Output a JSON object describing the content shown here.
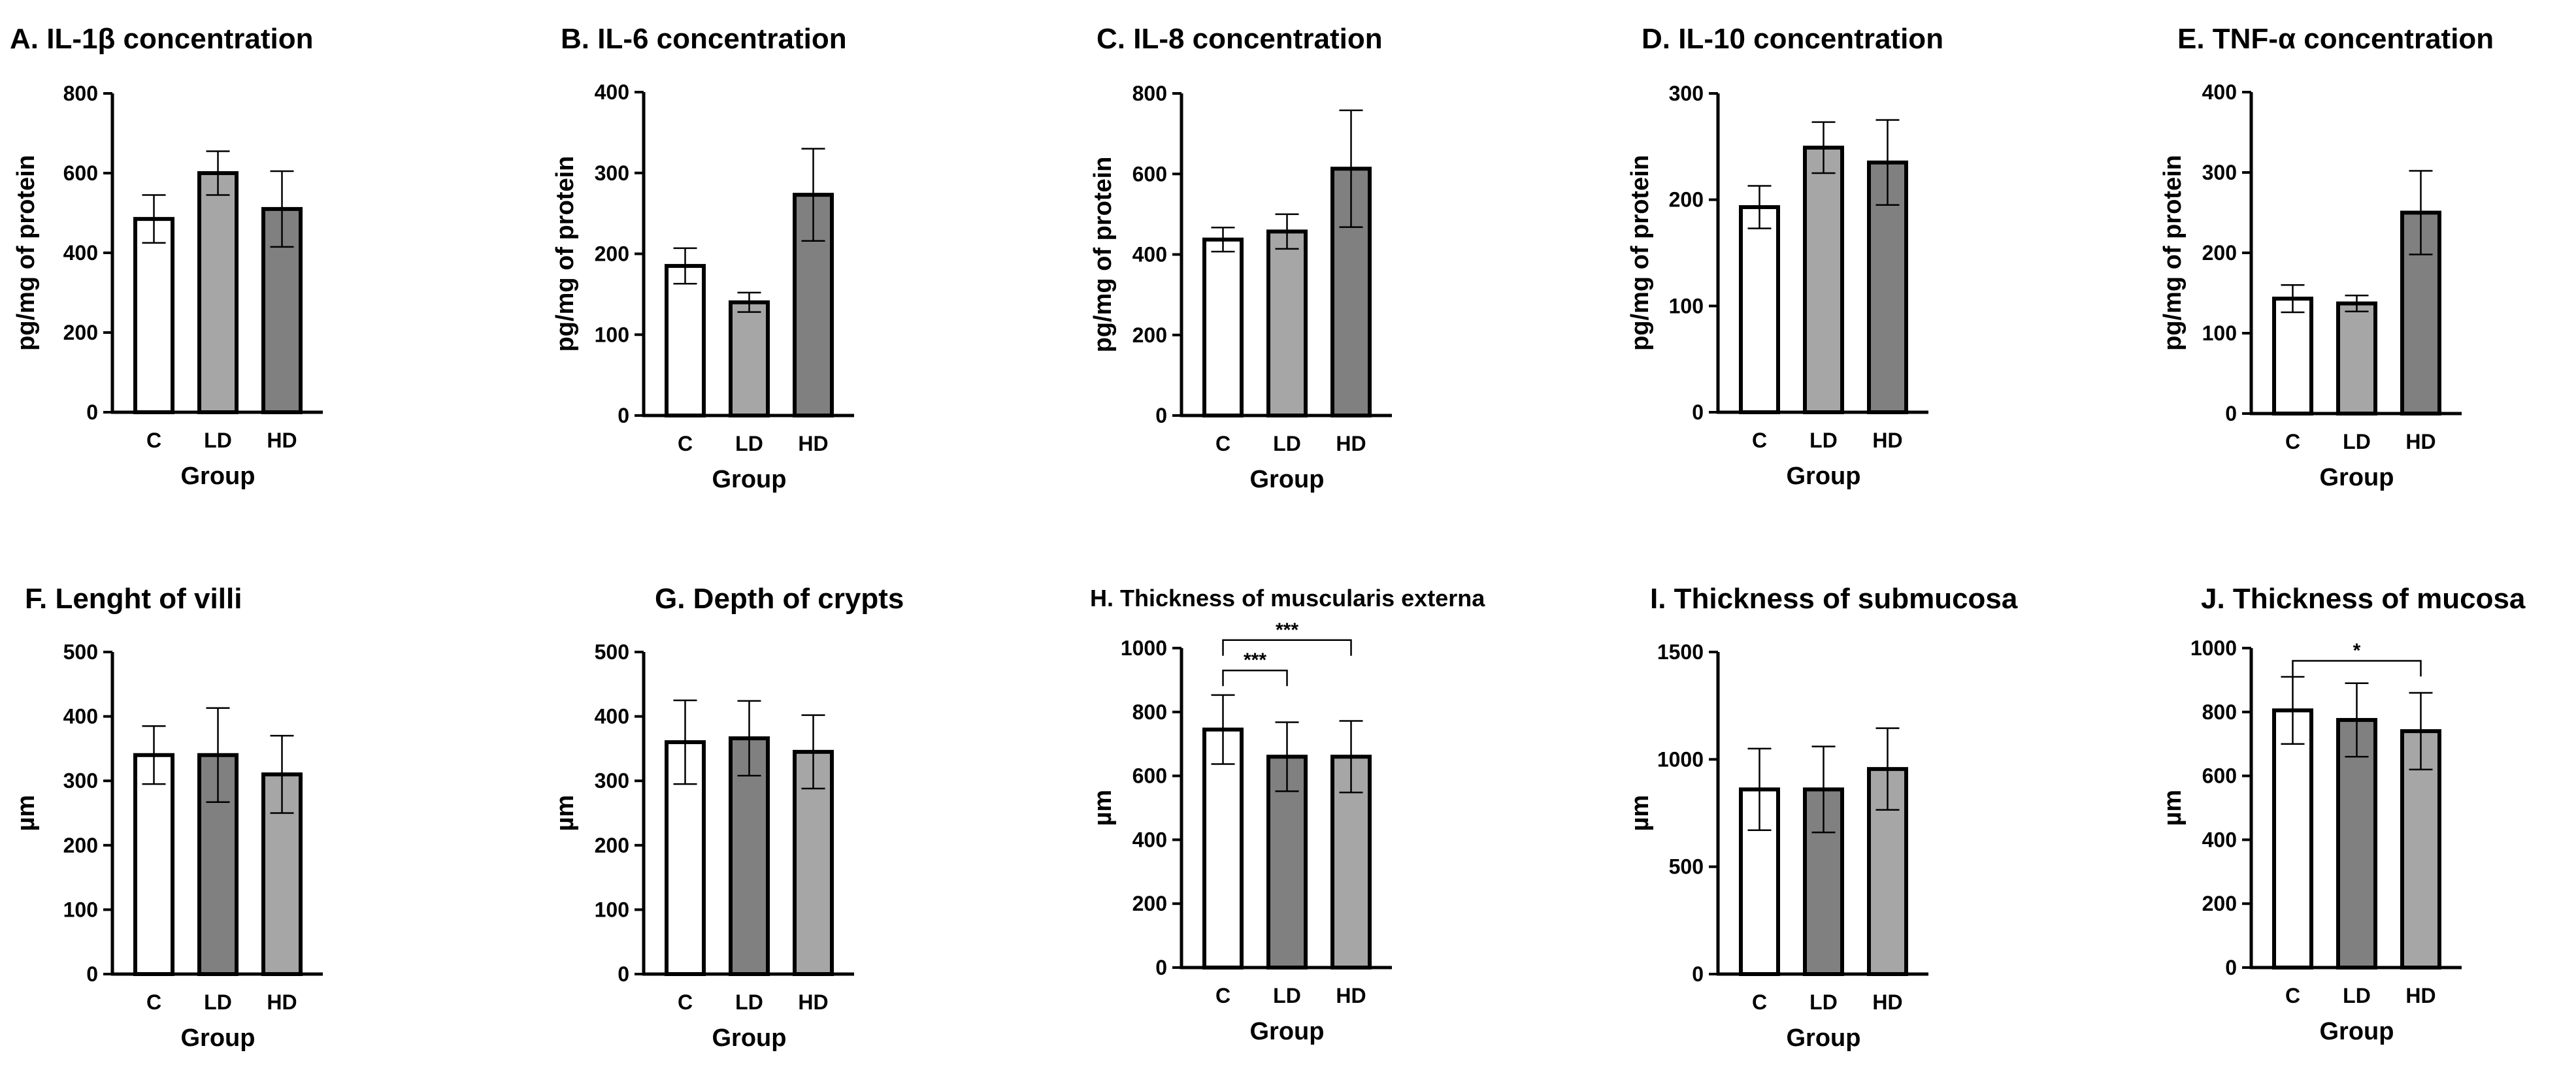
{
  "chart_data": [
    {
      "type": "bar",
      "title": "A. IL-1β concentration",
      "xlabel": "Group",
      "ylabel": "pg/mg of protein",
      "ylim": [
        0,
        800
      ],
      "ticks": [
        0,
        200,
        400,
        600,
        800
      ],
      "categories": [
        "C",
        "LD",
        "HD"
      ],
      "values": [
        485,
        600,
        510
      ],
      "errors": [
        60,
        55,
        95
      ],
      "bar_colors": [
        "#ffffff",
        "#a6a6a6",
        "#808080"
      ],
      "significance": []
    },
    {
      "type": "bar",
      "title": "B. IL-6 concentration",
      "xlabel": "Group",
      "ylabel": "pg/mg of protein",
      "ylim": [
        0,
        400
      ],
      "ticks": [
        0,
        100,
        200,
        300,
        400
      ],
      "categories": [
        "C",
        "LD",
        "HD"
      ],
      "values": [
        185,
        140,
        273
      ],
      "errors": [
        22,
        12,
        57
      ],
      "bar_colors": [
        "#ffffff",
        "#a6a6a6",
        "#808080"
      ],
      "significance": []
    },
    {
      "type": "bar",
      "title": "C. IL-8 concentration",
      "xlabel": "Group",
      "ylabel": "pg/mg of protein",
      "ylim": [
        0,
        800
      ],
      "ticks": [
        0,
        200,
        400,
        600,
        800
      ],
      "categories": [
        "C",
        "LD",
        "HD"
      ],
      "values": [
        437,
        457,
        613
      ],
      "errors": [
        30,
        43,
        145
      ],
      "bar_colors": [
        "#ffffff",
        "#a6a6a6",
        "#808080"
      ],
      "significance": []
    },
    {
      "type": "bar",
      "title": "D. IL-10 concentration",
      "xlabel": "Group",
      "ylabel": "pg/mg of protein",
      "ylim": [
        0,
        300
      ],
      "ticks": [
        0,
        100,
        200,
        300
      ],
      "categories": [
        "C",
        "LD",
        "HD"
      ],
      "values": [
        193,
        249,
        235
      ],
      "errors": [
        20,
        24,
        40
      ],
      "bar_colors": [
        "#ffffff",
        "#a6a6a6",
        "#808080"
      ],
      "significance": []
    },
    {
      "type": "bar",
      "title": "E. TNF-α concentration",
      "xlabel": "Group",
      "ylabel": "pg/mg of protein",
      "ylim": [
        0,
        400
      ],
      "ticks": [
        0,
        100,
        200,
        300,
        400
      ],
      "categories": [
        "C",
        "LD",
        "HD"
      ],
      "values": [
        143,
        137,
        250
      ],
      "errors": [
        17,
        10,
        52
      ],
      "bar_colors": [
        "#ffffff",
        "#a6a6a6",
        "#808080"
      ],
      "significance": []
    },
    {
      "type": "bar",
      "title": "F. Lenght of villi",
      "xlabel": "Group",
      "ylabel": "µm",
      "ylim": [
        0,
        500
      ],
      "ticks": [
        0,
        100,
        200,
        300,
        400,
        500
      ],
      "categories": [
        "C",
        "LD",
        "HD"
      ],
      "values": [
        340,
        340,
        310
      ],
      "errors": [
        45,
        73,
        60
      ],
      "bar_colors": [
        "#ffffff",
        "#808080",
        "#a6a6a6"
      ],
      "significance": []
    },
    {
      "type": "bar",
      "title": "G. Depth of crypts",
      "xlabel": "Group",
      "ylabel": "µm",
      "ylim": [
        0,
        500
      ],
      "ticks": [
        0,
        100,
        200,
        300,
        400,
        500
      ],
      "categories": [
        "C",
        "LD",
        "HD"
      ],
      "values": [
        360,
        366,
        345
      ],
      "errors": [
        65,
        58,
        57
      ],
      "bar_colors": [
        "#ffffff",
        "#808080",
        "#a6a6a6"
      ],
      "significance": []
    },
    {
      "type": "bar",
      "title": "H. Thickness of muscularis externa",
      "xlabel": "Group",
      "ylabel": "µm",
      "ylim": [
        0,
        1000
      ],
      "ticks": [
        0,
        200,
        400,
        600,
        800,
        1000
      ],
      "categories": [
        "C",
        "LD",
        "HD"
      ],
      "values": [
        745,
        660,
        660
      ],
      "errors": [
        108,
        108,
        112
      ],
      "bar_colors": [
        "#ffffff",
        "#808080",
        "#a6a6a6"
      ],
      "significance": [
        {
          "from": 0,
          "to": 1,
          "label": "***",
          "level": 930
        },
        {
          "from": 0,
          "to": 2,
          "label": "***",
          "level": 1025
        }
      ]
    },
    {
      "type": "bar",
      "title": "I. Thickness of submucosa",
      "xlabel": "Group",
      "ylabel": "µm",
      "ylim": [
        0,
        1500
      ],
      "ticks": [
        0,
        500,
        1000,
        1500
      ],
      "categories": [
        "C",
        "LD",
        "HD"
      ],
      "values": [
        860,
        860,
        955
      ],
      "errors": [
        190,
        200,
        190
      ],
      "bar_colors": [
        "#ffffff",
        "#808080",
        "#a6a6a6"
      ],
      "significance": []
    },
    {
      "type": "bar",
      "title": "J. Thickness of mucosa",
      "xlabel": "Group",
      "ylabel": "µm",
      "ylim": [
        0,
        1000
      ],
      "ticks": [
        0,
        200,
        400,
        600,
        800,
        1000
      ],
      "categories": [
        "C",
        "LD",
        "HD"
      ],
      "values": [
        805,
        775,
        740
      ],
      "errors": [
        105,
        115,
        120
      ],
      "bar_colors": [
        "#ffffff",
        "#808080",
        "#a6a6a6"
      ],
      "significance": [
        {
          "from": 0,
          "to": 2,
          "label": "*",
          "level": 960
        }
      ]
    }
  ]
}
